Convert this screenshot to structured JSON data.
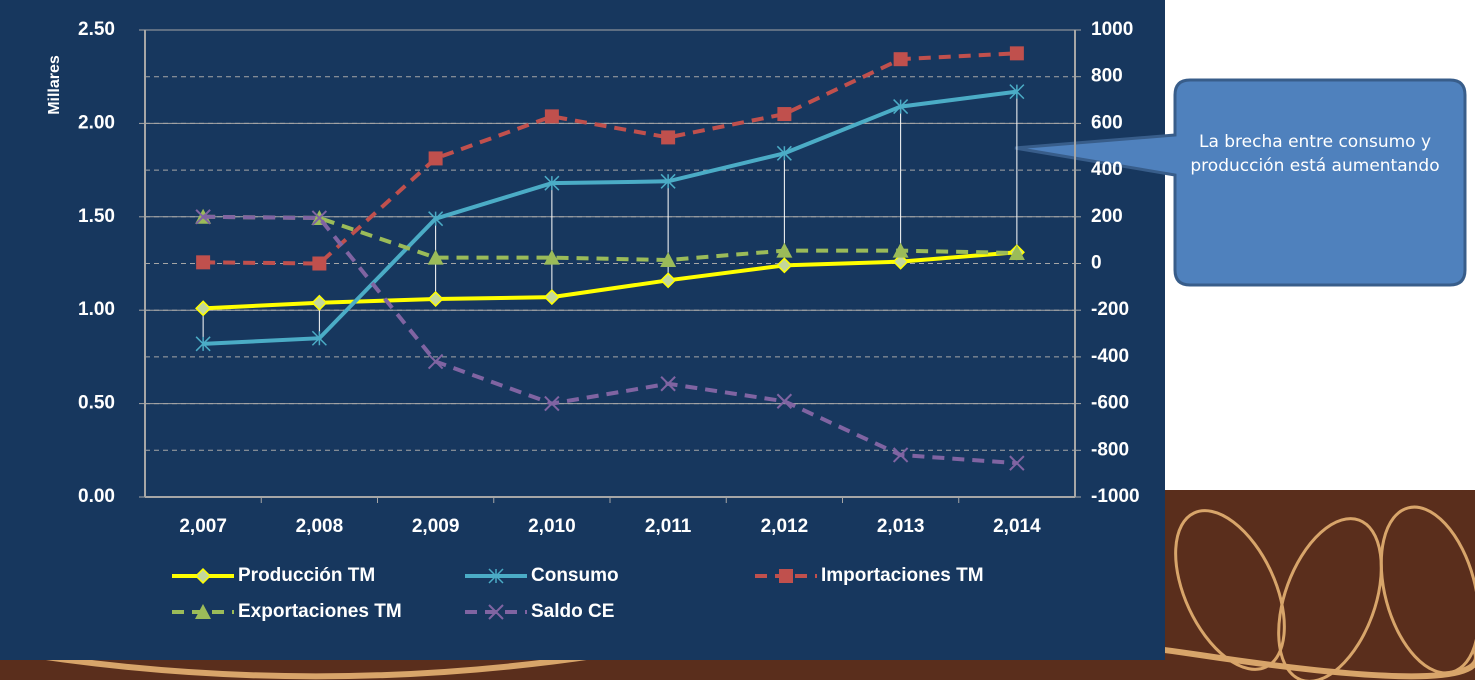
{
  "chart_data": {
    "type": "line",
    "y_label": "Millares",
    "annotation": "La brecha entre consumo y producción está aumentando",
    "categories": [
      "2,007",
      "2,008",
      "2,009",
      "2,010",
      "2,011",
      "2,012",
      "2,013",
      "2,014"
    ],
    "ylim": [
      0,
      2.5
    ],
    "yticks": [
      {
        "value": 0,
        "label": "0.00"
      },
      {
        "value": 0.5,
        "label": "0.50"
      },
      {
        "value": 1,
        "label": "1.00"
      },
      {
        "value": 1.5,
        "label": "1.50"
      },
      {
        "value": 2,
        "label": "2.00"
      },
      {
        "value": 2.5,
        "label": "2.50"
      }
    ],
    "y2lim": [
      -1000,
      1000
    ],
    "y2ticks": [
      -1000,
      -800,
      -600,
      -400,
      -200,
      0,
      200,
      400,
      600,
      800,
      1000
    ],
    "grid": true,
    "drop_lines": true,
    "series": [
      {
        "name": "Producción TM",
        "color": "#ffff00",
        "marker": "diamond",
        "dashed": false,
        "values": [
          1.01,
          1.04,
          1.06,
          1.07,
          1.16,
          1.24,
          1.26,
          1.31
        ]
      },
      {
        "name": "Consumo",
        "color": "#4bacc6",
        "marker": "star",
        "dashed": false,
        "values": [
          0.82,
          0.85,
          1.49,
          1.68,
          1.69,
          1.84,
          2.09,
          2.17
        ]
      },
      {
        "name": "Importaciones TM",
        "color": "#c0504d",
        "marker": "square",
        "dashed": true,
        "axis": "y2",
        "values": [
          5,
          0,
          450,
          630,
          540,
          640,
          875,
          900
        ]
      },
      {
        "name": "Exportaciones TM",
        "color": "#9bbb59",
        "marker": "triangle",
        "dashed": true,
        "axis": "y2",
        "values": [
          200,
          195,
          25,
          25,
          15,
          55,
          55,
          45
        ]
      },
      {
        "name": "Saldo CE",
        "color": "#8064a2",
        "marker": "x",
        "dashed": true,
        "axis": "y2",
        "values": [
          200,
          195,
          -420,
          -600,
          -515,
          -590,
          -820,
          -855
        ]
      }
    ]
  }
}
